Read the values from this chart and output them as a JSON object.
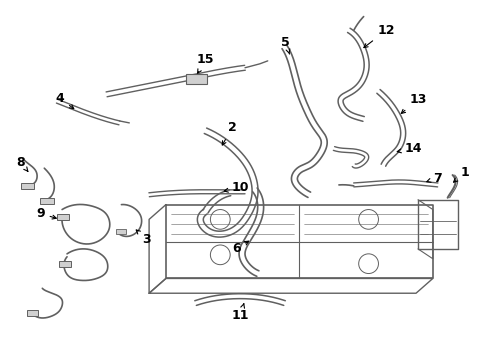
{
  "background_color": "#ffffff",
  "line_color": "#606060",
  "label_color": "#000000",
  "label_fontsize": 9,
  "figsize": [
    4.9,
    3.6
  ],
  "dpi": 100
}
